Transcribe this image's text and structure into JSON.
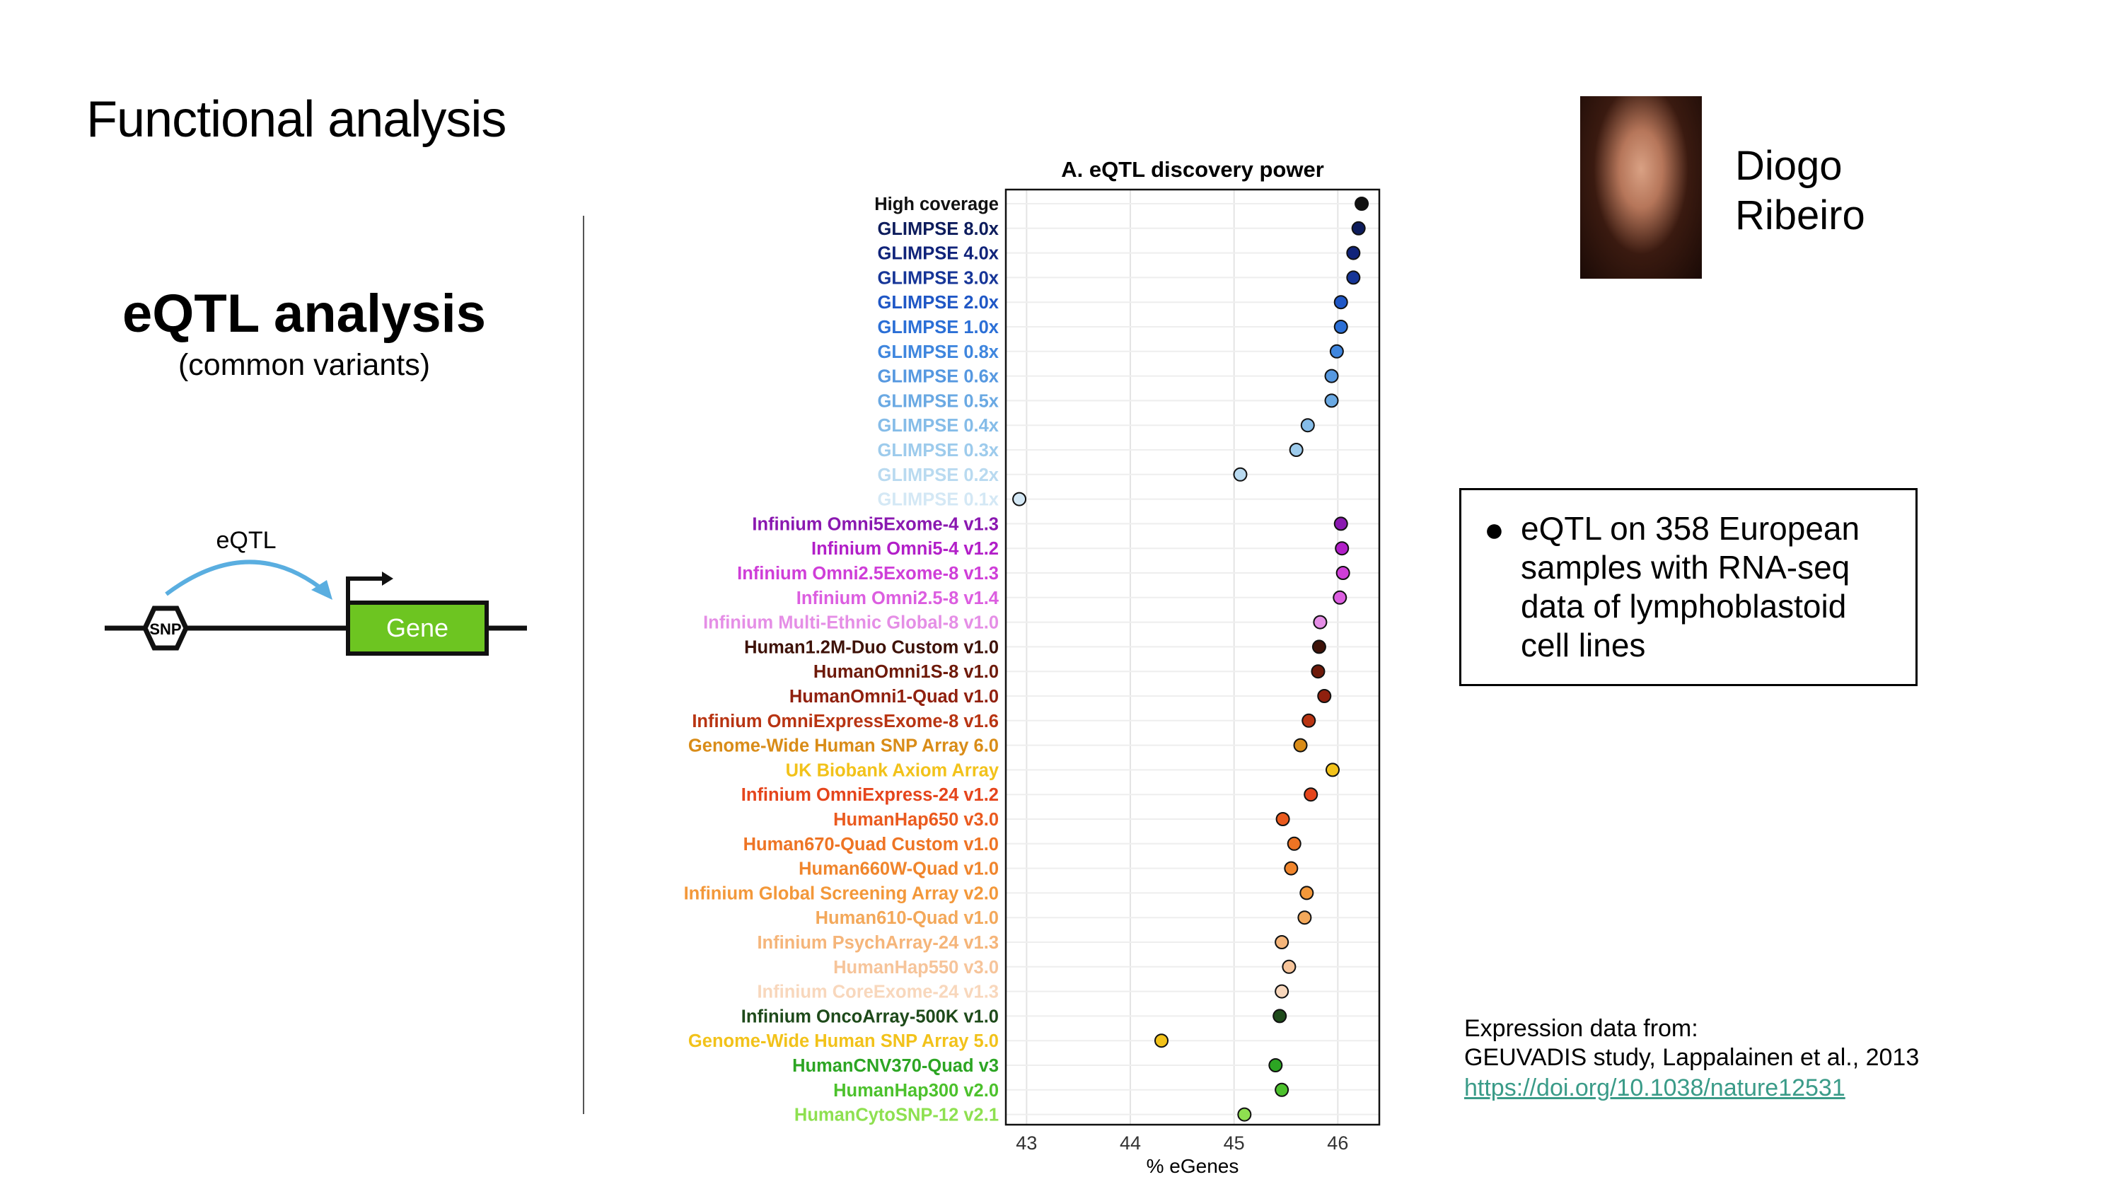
{
  "slide": {
    "title": "Functional analysis",
    "heading": "eQTL analysis",
    "subheading": "(common variants)"
  },
  "diagram": {
    "arrow_label": "eQTL",
    "snp_label": "SNP",
    "gene_label": "Gene",
    "gene_color": "#6dc521",
    "arrow_color": "#5aaee0"
  },
  "person": {
    "first_name": "Diogo",
    "last_name": "Ribeiro"
  },
  "info": {
    "bullet": "eQTL on 358 European samples with RNA-seq data of lymphoblastoid cell lines"
  },
  "source": {
    "label": "Expression data from:",
    "citation": "GEUVADIS study, Lappalainen et al., 2013",
    "link": "https://doi.org/10.1038/nature12531"
  },
  "chart_data": {
    "type": "scatter",
    "title": "A. eQTL discovery power",
    "xlabel": "% eGenes",
    "xlim": [
      42.8,
      46.4
    ],
    "xticks": [
      43,
      44,
      45,
      46
    ],
    "grid": true,
    "categories": [
      {
        "label": "High coverage",
        "value": 46.23,
        "color": "#111111"
      },
      {
        "label": "GLIMPSE 8.0x",
        "value": 46.2,
        "color": "#0d1c5c"
      },
      {
        "label": "GLIMPSE 4.0x",
        "value": 46.15,
        "color": "#10237a"
      },
      {
        "label": "GLIMPSE 3.0x",
        "value": 46.15,
        "color": "#163597"
      },
      {
        "label": "GLIMPSE 2.0x",
        "value": 46.03,
        "color": "#1f57c6"
      },
      {
        "label": "GLIMPSE 1.0x",
        "value": 46.03,
        "color": "#2b6fd6"
      },
      {
        "label": "GLIMPSE 0.8x",
        "value": 45.99,
        "color": "#3f86de"
      },
      {
        "label": "GLIMPSE 0.6x",
        "value": 45.94,
        "color": "#5698e0"
      },
      {
        "label": "GLIMPSE 0.5x",
        "value": 45.94,
        "color": "#6aa9e3"
      },
      {
        "label": "GLIMPSE 0.4x",
        "value": 45.71,
        "color": "#85bce8"
      },
      {
        "label": "GLIMPSE 0.3x",
        "value": 45.6,
        "color": "#9dcbec"
      },
      {
        "label": "GLIMPSE 0.2x",
        "value": 45.06,
        "color": "#b9daf0"
      },
      {
        "label": "GLIMPSE 0.1x",
        "value": 42.93,
        "color": "#d4e8f5"
      },
      {
        "label": "Infinium Omni5Exome-4 v1.3",
        "value": 46.03,
        "color": "#8a18b0"
      },
      {
        "label": "Infinium Omni5-4 v1.2",
        "value": 46.04,
        "color": "#b21fc8"
      },
      {
        "label": "Infinium Omni2.5Exome-8 v1.3",
        "value": 46.05,
        "color": "#cf3ed8"
      },
      {
        "label": "Infinium Omni2.5-8 v1.4",
        "value": 46.02,
        "color": "#dc5ee0"
      },
      {
        "label": "Infinium Multi-Ethnic Global-8 v1.0",
        "value": 45.83,
        "color": "#e58ee6"
      },
      {
        "label": "Human1.2M-Duo Custom v1.0",
        "value": 45.82,
        "color": "#3e1208"
      },
      {
        "label": "HumanOmni1S-8 v1.0",
        "value": 45.81,
        "color": "#6e1a0a"
      },
      {
        "label": "HumanOmni1-Quad v1.0",
        "value": 45.87,
        "color": "#90200e"
      },
      {
        "label": "Infinium OmniExpressExome-8 v1.6",
        "value": 45.72,
        "color": "#b83412"
      },
      {
        "label": "Genome-Wide Human SNP Array 6.0",
        "value": 45.64,
        "color": "#d98c18"
      },
      {
        "label": "UK Biobank Axiom Array",
        "value": 45.95,
        "color": "#f2c21a"
      },
      {
        "label": "Infinium OmniExpress-24 v1.2",
        "value": 45.74,
        "color": "#e5451c"
      },
      {
        "label": "HumanHap650 v3.0",
        "value": 45.47,
        "color": "#ea5a1e"
      },
      {
        "label": "Human670-Quad Custom v1.0",
        "value": 45.58,
        "color": "#ee7424"
      },
      {
        "label": "Human660W-Quad v1.0",
        "value": 45.55,
        "color": "#f0852c"
      },
      {
        "label": "Infinium Global Screening Array v2.0",
        "value": 45.7,
        "color": "#f3983a"
      },
      {
        "label": "Human610-Quad v1.0",
        "value": 45.68,
        "color": "#f3a85a"
      },
      {
        "label": "Infinium PsychArray-24 v1.3",
        "value": 45.46,
        "color": "#f5b57a"
      },
      {
        "label": "HumanHap550 v3.0",
        "value": 45.53,
        "color": "#f6c49a"
      },
      {
        "label": "Infinium CoreExome-24 v1.3",
        "value": 45.46,
        "color": "#f8d7bc"
      },
      {
        "label": "Infinium OncoArray-500K v1.0",
        "value": 45.44,
        "color": "#1e4a1a"
      },
      {
        "label": "Genome-Wide Human SNP Array 5.0",
        "value": 44.3,
        "color": "#f2c21a"
      },
      {
        "label": "HumanCNV370-Quad v3",
        "value": 45.4,
        "color": "#2ca523"
      },
      {
        "label": "HumanHap300 v2.0",
        "value": 45.46,
        "color": "#4cc12c"
      },
      {
        "label": "HumanCytoSNP-12 v2.1",
        "value": 45.1,
        "color": "#8ee050"
      }
    ]
  }
}
